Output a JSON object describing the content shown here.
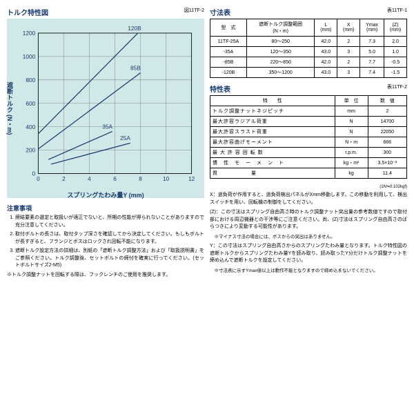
{
  "chart": {
    "title": "トルク特性図",
    "fig_label": "図11TF-2",
    "xlabel": "スプリングたわみ量Y (mm)",
    "ylabel": "遮断トルク (N・m)",
    "bg": "#d0e8e8",
    "grid_color": "#888",
    "line_color": "#1a3a6e",
    "xlim": [
      0,
      12
    ],
    "xtick": 2,
    "ylim": [
      0,
      1200
    ],
    "ytick": 200,
    "series": [
      {
        "label": "25A",
        "pts": [
          [
            1.0,
            80
          ],
          [
            7.2,
            260
          ]
        ]
      },
      {
        "label": "35A",
        "pts": [
          [
            0.8,
            120
          ],
          [
            5.8,
            360
          ]
        ]
      },
      {
        "label": "85B",
        "pts": [
          [
            0.0,
            210
          ],
          [
            8.0,
            860
          ]
        ]
      },
      {
        "label": "120B",
        "pts": [
          [
            0.0,
            340
          ],
          [
            7.8,
            1200
          ]
        ]
      }
    ]
  },
  "notes_title": "注意事項",
  "notes": [
    "締結要素の選定と取扱いが適正でないと、所期の性能が得られないことがありますので充分注意してください。",
    "取付ボルトの長さは、取付タップ深さを確認してから決定してください。もしもボルトが長すぎると、フランジとボスはロックされ回転不能になります。",
    "遮断トルク設定方法の詳細は、別紙の「遮断トルク調整方法」および「取扱説明書」をご参照ください。トルク調整後、セットボルトの締付を確実に行ってください。(セットボルトサイズ2-M5)"
  ],
  "notes_footer": "※トルク調整ナットを回転する際は、フックレンチのご使用を推奨します。",
  "dim_table": {
    "title": "寸法表",
    "tbl_label": "表11TF-1",
    "headers": [
      "型　式",
      "遮断トルク調整範囲\n(N・m)",
      "L\n(mm)",
      "X\n(mm)",
      "Ymax\n(mm)",
      "(Z)\n(mm)"
    ],
    "rows": [
      [
        "11TF-25A",
        "80～250",
        "42.0",
        "2",
        "7.3",
        "2.0"
      ],
      [
        "-35A",
        "120～350",
        "43.0",
        "3",
        "5.0",
        "1.0"
      ],
      [
        "-85B",
        "220～850",
        "42.0",
        "2",
        "7.7",
        "-0.5"
      ],
      [
        "-120B",
        "350～1200",
        "43.0",
        "3",
        "7.4",
        "-1.5"
      ]
    ]
  },
  "prop_table": {
    "title": "特性表",
    "tbl_label": "表11TF-2",
    "headers": [
      "特　　性",
      "単　位",
      "数　値"
    ],
    "rows": [
      [
        "トルク調整ナットネジピッチ",
        "mm",
        "2"
      ],
      [
        "最大許容ラジアル荷重",
        "N",
        "14700"
      ],
      [
        "最大許容スラスト荷重",
        "N",
        "22050"
      ],
      [
        "最大許容曲げモーメント",
        "N・m",
        "666"
      ],
      [
        "最 大 許 容 回 転 数",
        "r.p.m.",
        "300"
      ],
      [
        "慣　性　モ　ー　メ　ン　ト",
        "kg・m²",
        "3.5×10⁻²"
      ],
      [
        "質　　　　　　量",
        "kg",
        "11.4"
      ]
    ],
    "footnote": "(1N≒0.102kgf)"
  },
  "xyz": [
    {
      "k": "X",
      "t": "過負荷が作用すると、過負荷検出パネルがXmm移動します。この移動を利用して、検出スイッチを用い、回転機の制御をしてください。"
    },
    {
      "k": "(Z)",
      "t": "この寸法はスプリング自由高さ時のトルク調整ナット突出量の参考数値ですので取付部における周辺機器との干渉等にご注意ください。尚、(Z)寸法はスプリング自由高さのばらつきにより変動する可能性があります。",
      "sub": "※マイナス寸法の場合には、ボスからの突出はありません。"
    },
    {
      "k": "Y",
      "t": "この寸法はスプリング自由高さからのスプリングたわみ量となります。トルク特性図の遮断トルクからスプリングたわみ量Yを読み取り、読み取ったY分だけトルク調整ナットを締め込んで遮断トルクを設定してください。",
      "sub": "※寸法表に示すYmax値以上は動作不能となりますので締め込まないでください。"
    }
  ]
}
